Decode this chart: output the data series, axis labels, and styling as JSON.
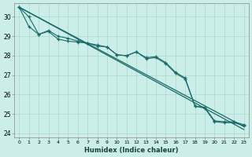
{
  "xlabel": "Humidex (Indice chaleur)",
  "bg_color": "#cceee8",
  "grid_color": "#aad8d0",
  "line_color": "#1a6b6b",
  "xlim": [
    -0.5,
    23.5
  ],
  "ylim": [
    23.8,
    30.7
  ],
  "yticks": [
    24,
    25,
    26,
    27,
    28,
    29,
    30
  ],
  "xticks": [
    0,
    1,
    2,
    3,
    4,
    5,
    6,
    7,
    8,
    9,
    10,
    11,
    12,
    13,
    14,
    15,
    16,
    17,
    18,
    19,
    20,
    21,
    22,
    23
  ],
  "marked1_x": [
    0,
    1,
    2,
    3,
    4,
    5,
    6,
    7,
    8,
    9,
    10,
    11,
    12,
    13,
    14,
    15,
    16,
    17,
    18,
    19,
    20,
    21,
    22,
    23
  ],
  "marked1_y": [
    30.5,
    30.0,
    29.1,
    29.25,
    28.85,
    28.75,
    28.7,
    28.65,
    28.5,
    28.45,
    28.05,
    28.0,
    28.2,
    27.9,
    27.95,
    27.65,
    27.15,
    26.85,
    25.4,
    25.35,
    24.65,
    24.6,
    24.6,
    24.45
  ],
  "marked2_x": [
    0,
    1,
    2,
    3,
    4,
    5,
    6,
    7,
    8,
    9,
    10,
    11,
    12,
    13,
    14,
    15,
    16,
    17,
    18,
    19,
    20,
    21,
    22,
    23
  ],
  "marked2_y": [
    30.5,
    29.5,
    29.1,
    29.3,
    29.0,
    28.9,
    28.75,
    28.65,
    28.55,
    28.45,
    28.05,
    28.0,
    28.2,
    27.85,
    27.9,
    27.6,
    27.1,
    26.8,
    25.4,
    25.3,
    24.6,
    24.55,
    24.55,
    24.4
  ],
  "line1_x": [
    0,
    23
  ],
  "line1_y": [
    30.5,
    24.35
  ],
  "line2_x": [
    0,
    23
  ],
  "line2_y": [
    30.5,
    24.2
  ]
}
